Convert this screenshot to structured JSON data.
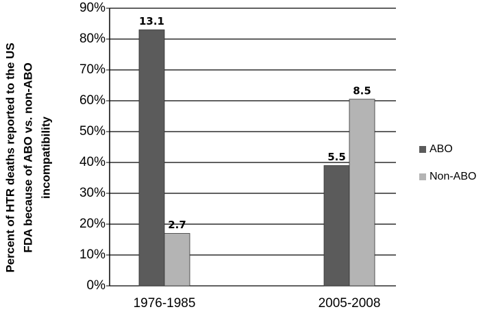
{
  "chart_data": {
    "type": "bar",
    "ylabel": [
      "Percent of HTR deaths reported to the US",
      "FDA because of ABO vs. non-ABO",
      "incompatibility"
    ],
    "categories": [
      "1976-1985",
      "2005-2008"
    ],
    "series": [
      {
        "name": "ABO",
        "color": "#5b5b5b",
        "values": [
          83,
          39
        ],
        "bar_labels": [
          13.1,
          5.5
        ]
      },
      {
        "name": "Non-ABO",
        "color": "#b4b4b4",
        "values": [
          17,
          60.5
        ],
        "bar_labels": [
          2.7,
          8.5
        ]
      }
    ],
    "ylim": [
      0,
      90
    ],
    "yticks": [
      {
        "value": 0,
        "label": "0%"
      },
      {
        "value": 10,
        "label": "10%"
      },
      {
        "value": 20,
        "label": "20%"
      },
      {
        "value": 30,
        "label": "30%"
      },
      {
        "value": 40,
        "label": "40%"
      },
      {
        "value": 50,
        "label": "50%"
      },
      {
        "value": 60,
        "label": "60%"
      },
      {
        "value": 70,
        "label": "70%"
      },
      {
        "value": 80,
        "label": "80%"
      },
      {
        "value": 90,
        "label": "90%"
      }
    ],
    "grid": true
  }
}
